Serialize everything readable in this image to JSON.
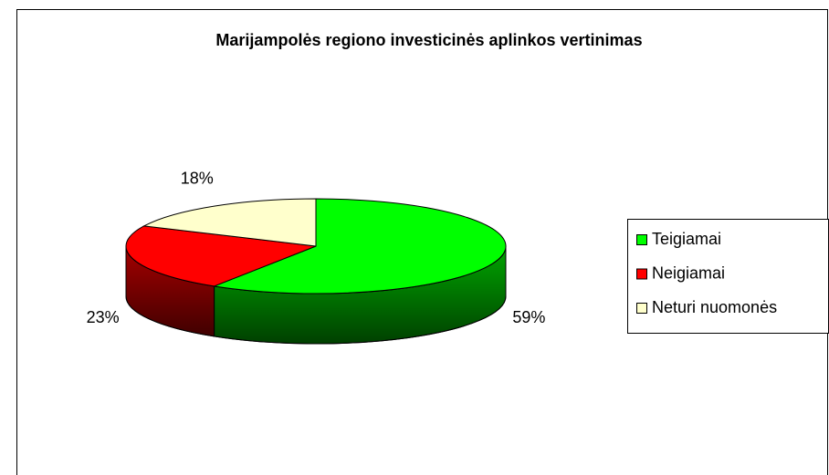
{
  "chart_data": {
    "type": "pie",
    "title": "Marijampolės regiono investicinės aplinkos vertinimas",
    "categories": [
      "Teigiamai",
      "Neigiamai",
      "Neturi nuomonės"
    ],
    "values": [
      59,
      23,
      18
    ],
    "value_labels": [
      "59%",
      "23%",
      "18%"
    ],
    "colors": [
      "#00ff00",
      "#ff0000",
      "#ffffcc"
    ],
    "legend": "right"
  }
}
